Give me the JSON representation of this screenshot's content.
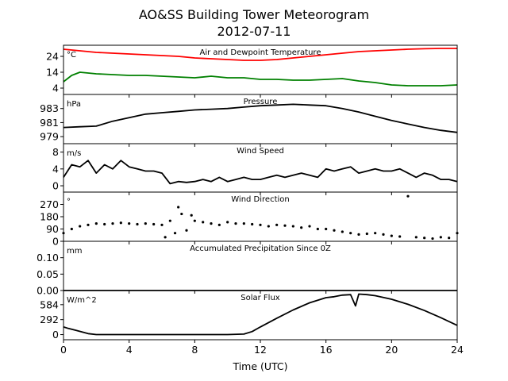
{
  "title": "AO&SS Building Tower Meteorogram",
  "subtitle": "2012-07-11",
  "x_axis": {
    "label": "Time (UTC)",
    "range": [
      0,
      24
    ],
    "ticks": [
      0,
      4,
      8,
      12,
      16,
      20,
      24
    ]
  },
  "chart_data": [
    {
      "type": "line",
      "title": "Air and Dewpoint Temperature",
      "units": "°C",
      "ylim": [
        0,
        31
      ],
      "yticks": [
        4,
        14,
        24
      ],
      "series": [
        {
          "color": "#ff0000",
          "x": [
            0,
            1,
            2,
            3,
            4,
            5,
            6,
            7,
            8,
            9,
            10,
            11,
            12,
            13,
            14,
            15,
            16,
            17,
            18,
            19,
            20,
            21,
            22,
            23,
            24
          ],
          "y": [
            28.5,
            27.5,
            26.5,
            26,
            25.5,
            25,
            24.5,
            24,
            23,
            22.5,
            22,
            21.5,
            21.5,
            22,
            23,
            24,
            25,
            26,
            27,
            27.5,
            28,
            28.5,
            28.8,
            29,
            29
          ]
        },
        {
          "color": "#008000",
          "x": [
            0,
            0.5,
            1,
            2,
            3,
            4,
            5,
            6,
            7,
            8,
            9,
            10,
            11,
            12,
            13,
            14,
            15,
            16,
            17,
            18,
            19,
            20,
            21,
            22,
            23,
            24
          ],
          "y": [
            8,
            12,
            14,
            13,
            12.5,
            12,
            12,
            11.5,
            11,
            10.5,
            11.5,
            10.5,
            10.5,
            9.5,
            9.5,
            9,
            9,
            9.5,
            10,
            8.5,
            7.5,
            6,
            5.5,
            5.5,
            5.5,
            6
          ]
        }
      ]
    },
    {
      "type": "line",
      "title": "Pressure",
      "units": "hPa",
      "ylim": [
        978,
        985
      ],
      "yticks": [
        979,
        981,
        983
      ],
      "series": [
        {
          "color": "#000000",
          "x": [
            0,
            1,
            2,
            3,
            4,
            5,
            6,
            7,
            8,
            9,
            10,
            11,
            12,
            13,
            14,
            15,
            16,
            17,
            18,
            19,
            20,
            21,
            22,
            23,
            24
          ],
          "y": [
            980.3,
            980.4,
            980.5,
            981.2,
            981.7,
            982.2,
            982.4,
            982.6,
            982.8,
            982.9,
            983.0,
            983.2,
            983.4,
            983.5,
            983.6,
            983.5,
            983.4,
            983.0,
            982.5,
            981.9,
            981.3,
            980.8,
            980.3,
            979.9,
            979.6
          ]
        }
      ]
    },
    {
      "type": "line",
      "title": "Wind Speed",
      "units": "m/s",
      "ylim": [
        -1.5,
        10
      ],
      "yticks": [
        0,
        4,
        8
      ],
      "series": [
        {
          "color": "#000000",
          "x": [
            0,
            0.5,
            1,
            1.5,
            2,
            2.5,
            3,
            3.5,
            4,
            4.5,
            5,
            5.5,
            6,
            6.5,
            7,
            7.5,
            8,
            8.5,
            9,
            9.5,
            10,
            10.5,
            11,
            11.5,
            12,
            12.5,
            13,
            13.5,
            14,
            14.5,
            15,
            15.5,
            16,
            16.5,
            17,
            17.5,
            18,
            18.5,
            19,
            19.5,
            20,
            20.5,
            21,
            21.5,
            22,
            22.5,
            23,
            23.5,
            24
          ],
          "y": [
            2,
            5,
            4.5,
            6,
            3,
            5,
            4,
            6,
            4.5,
            4,
            3.5,
            3.5,
            3,
            0.5,
            1,
            0.8,
            1,
            1.5,
            1,
            2,
            1,
            1.5,
            2,
            1.5,
            1.5,
            2,
            2.5,
            2,
            2.5,
            3,
            2.5,
            2,
            4,
            3.5,
            4,
            4.5,
            3,
            3.5,
            4,
            3.5,
            3.5,
            4,
            3,
            2,
            3,
            2.5,
            1.5,
            1.5,
            1
          ]
        }
      ]
    },
    {
      "type": "scatter",
      "title": "Wind Direction",
      "units": "°",
      "ylim": [
        0,
        360
      ],
      "yticks": [
        0,
        90,
        180,
        270
      ],
      "series": [
        {
          "color": "#000000",
          "x": [
            0,
            0.5,
            1,
            1.5,
            2,
            2.5,
            3,
            3.5,
            4,
            4.5,
            5,
            5.5,
            6,
            6.2,
            6.5,
            6.8,
            7,
            7.2,
            7.5,
            7.8,
            8,
            8.5,
            9,
            9.5,
            10,
            10.5,
            11,
            11.5,
            12,
            12.5,
            13,
            13.5,
            14,
            14.5,
            15,
            15.5,
            16,
            16.5,
            17,
            17.5,
            18,
            18.5,
            19,
            19.5,
            20,
            20.5,
            21,
            21.5,
            22,
            22.5,
            23,
            23.5,
            24
          ],
          "y": [
            60,
            90,
            110,
            120,
            130,
            125,
            130,
            135,
            130,
            125,
            130,
            125,
            120,
            30,
            150,
            60,
            250,
            200,
            80,
            190,
            150,
            140,
            130,
            120,
            140,
            130,
            130,
            125,
            120,
            110,
            120,
            115,
            110,
            100,
            110,
            90,
            90,
            80,
            70,
            60,
            50,
            55,
            60,
            50,
            40,
            35,
            330,
            30,
            25,
            20,
            30,
            25,
            60
          ]
        }
      ]
    },
    {
      "type": "line",
      "title": "Accumulated Precipitation Since 0Z",
      "units": "mm",
      "ylim": [
        0,
        0.15
      ],
      "yticks": [
        0.0,
        0.05,
        0.1
      ],
      "ytick_labels": [
        "0.00",
        "0.05",
        "0.10"
      ],
      "series": [
        {
          "color": "#000000",
          "x": [
            0,
            24
          ],
          "y": [
            0,
            0
          ]
        }
      ]
    },
    {
      "type": "line",
      "title": "Solar Flux",
      "units": "W/m^2",
      "ylim": [
        -100,
        860
      ],
      "yticks": [
        0,
        292,
        584
      ],
      "series": [
        {
          "color": "#000000",
          "x": [
            0,
            0.3,
            0.8,
            1.5,
            2,
            3,
            4,
            5,
            6,
            7,
            8,
            9,
            10,
            11,
            11.5,
            12,
            13,
            14,
            15,
            16,
            16.5,
            17,
            17.5,
            17.8,
            18,
            18.5,
            19,
            20,
            21,
            22,
            23,
            24
          ],
          "y": [
            150,
            120,
            80,
            20,
            0,
            0,
            0,
            0,
            0,
            0,
            0,
            0,
            0,
            10,
            60,
            150,
            320,
            480,
            620,
            720,
            740,
            770,
            780,
            560,
            790,
            780,
            760,
            690,
            590,
            470,
            330,
            180
          ]
        }
      ]
    }
  ]
}
